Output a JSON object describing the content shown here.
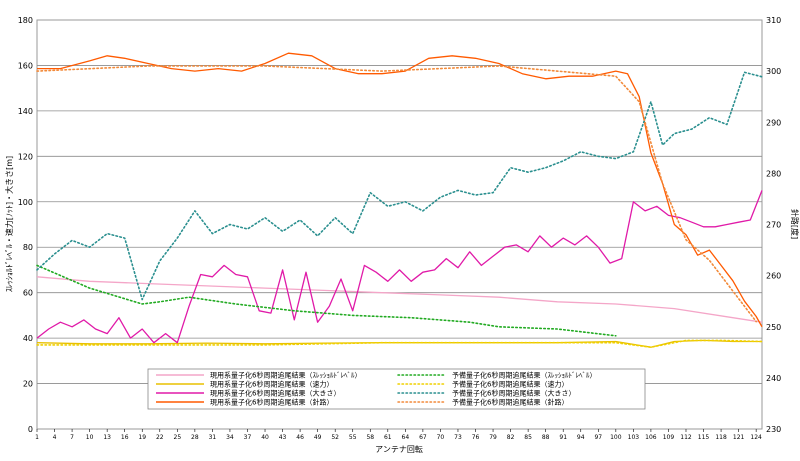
{
  "chart_data": {
    "type": "line",
    "xlabel": "アンテナ回転",
    "ylabel_left": "ｽﾚｯｼｮﾙﾄﾞﾚﾍﾞﾙ・速力[ﾉｯﾄ]・大きさ[m]",
    "ylabel_right": "針路[度]",
    "ylim_left": [
      0,
      180
    ],
    "ylim_right": [
      230,
      310
    ],
    "yticks_left": [
      "0",
      "20",
      "40",
      "60",
      "80",
      "100",
      "120",
      "140",
      "160",
      "180"
    ],
    "yticks_right": [
      "230",
      "240",
      "250",
      "260",
      "270",
      "280",
      "290",
      "300",
      "310"
    ],
    "x_ticks": [
      "1",
      "4",
      "7",
      "10",
      "13",
      "16",
      "19",
      "22",
      "25",
      "28",
      "31",
      "34",
      "37",
      "40",
      "43",
      "46",
      "49",
      "52",
      "55",
      "58",
      "61",
      "64",
      "67",
      "70",
      "73",
      "76",
      "79",
      "82",
      "85",
      "88",
      "91",
      "94",
      "97",
      "100",
      "103",
      "106",
      "109",
      "112",
      "115",
      "118",
      "121",
      "124"
    ],
    "grid": "horizontal",
    "legend_placement": "bottom",
    "series": [
      {
        "name": "現用系量子化6秒周期追尾結果（ｽﾚｯｼｮﾙﾄﾞﾚﾍﾞﾙ）",
        "axis": "left",
        "color": "#f4a6c8",
        "style": "solid",
        "x": [
          1,
          10,
          20,
          30,
          40,
          50,
          60,
          70,
          80,
          90,
          100,
          110,
          120,
          125
        ],
        "values": [
          67,
          65,
          64,
          63,
          62,
          61,
          60,
          59,
          58,
          56,
          55,
          53,
          49,
          47
        ]
      },
      {
        "name": "現用系量子化6秒周期追尾結果（速力）",
        "axis": "left",
        "color": "#e8c000",
        "style": "solid",
        "x": [
          1,
          10,
          20,
          30,
          40,
          50,
          60,
          70,
          80,
          90,
          100,
          106,
          110,
          115,
          120,
          125
        ],
        "values": [
          38,
          37.5,
          37.5,
          37.8,
          37.5,
          37.8,
          38,
          38,
          38,
          38,
          38.5,
          36,
          38.5,
          39,
          38.5,
          38.5
        ]
      },
      {
        "name": "現用系量子化6秒周期追尾結果（大きさ）",
        "axis": "left",
        "color": "#e01aa8",
        "style": "solid",
        "x": [
          1,
          3,
          5,
          7,
          9,
          11,
          13,
          15,
          17,
          19,
          21,
          23,
          25,
          27,
          29,
          31,
          33,
          35,
          37,
          39,
          41,
          43,
          45,
          47,
          49,
          51,
          53,
          55,
          57,
          59,
          61,
          63,
          65,
          67,
          69,
          71,
          73,
          75,
          77,
          79,
          81,
          83,
          85,
          87,
          89,
          91,
          93,
          95,
          97,
          99,
          101,
          103,
          105,
          107,
          109,
          111,
          113,
          115,
          117,
          119,
          121,
          123,
          125
        ],
        "values": [
          40,
          44,
          47,
          45,
          48,
          44,
          42,
          49,
          40,
          44,
          38,
          42,
          38,
          54,
          68,
          67,
          72,
          68,
          67,
          52,
          51,
          70,
          48,
          69,
          47,
          54,
          66,
          52,
          72,
          69,
          65,
          70,
          65,
          69,
          70,
          75,
          71,
          78,
          72,
          76,
          80,
          81,
          78,
          85,
          80,
          84,
          81,
          85,
          80,
          73,
          75,
          100,
          96,
          98,
          94,
          93,
          91,
          89,
          89,
          90,
          91,
          92,
          105
        ]
      },
      {
        "name": "現用系量子化6秒周期追尾結果（針路）",
        "axis": "right",
        "color": "#ff5a00",
        "style": "solid",
        "x": [
          1,
          5,
          10,
          13,
          16,
          20,
          24,
          28,
          32,
          36,
          40,
          44,
          48,
          52,
          56,
          60,
          64,
          68,
          72,
          76,
          80,
          84,
          88,
          92,
          96,
          100,
          102,
          104,
          106,
          108,
          110,
          112,
          114,
          116,
          118,
          120,
          122,
          124,
          125
        ],
        "values": [
          300.5,
          300.5,
          302,
          303,
          302.5,
          301.5,
          300.5,
          300,
          300.5,
          300,
          301.5,
          303.5,
          303,
          300.5,
          299.5,
          299.5,
          300,
          302.5,
          303,
          302.5,
          301.5,
          299.5,
          298.5,
          299,
          299,
          300,
          299.5,
          295,
          284,
          278,
          270,
          268,
          264,
          265,
          262,
          259,
          255,
          252,
          250
        ]
      },
      {
        "name": "予備量子化6秒周期追尾結果（ｽﾚｯｼｮﾙﾄﾞﾚﾍﾞﾙ）",
        "axis": "left",
        "color": "#22aa22",
        "style": "dotted",
        "x": [
          1,
          10,
          19,
          22,
          27,
          35,
          45,
          55,
          65,
          75,
          80,
          90,
          100
        ],
        "values": [
          72,
          62,
          55,
          56,
          58,
          55,
          52,
          50,
          49,
          47,
          45,
          44,
          41
        ]
      },
      {
        "name": "予備量子化6秒周期追尾結果（速力）",
        "axis": "left",
        "color": "#f0d000",
        "style": "dotted",
        "x": [
          1,
          20,
          40,
          60,
          80,
          100,
          106,
          112,
          118,
          125
        ],
        "values": [
          37,
          37,
          37,
          38,
          38,
          38,
          36,
          39,
          39,
          38.5
        ]
      },
      {
        "name": "予備量子化6秒周期追尾結果（大きさ）",
        "axis": "left",
        "color": "#2a8f8f",
        "style": "dotted",
        "x": [
          1,
          4,
          7,
          10,
          13,
          16,
          19,
          22,
          25,
          28,
          31,
          34,
          37,
          40,
          43,
          46,
          49,
          52,
          55,
          58,
          61,
          64,
          67,
          70,
          73,
          76,
          79,
          82,
          85,
          88,
          91,
          94,
          97,
          100,
          103,
          106,
          108,
          110,
          113,
          116,
          119,
          122,
          125
        ],
        "values": [
          70,
          77,
          83,
          80,
          86,
          84,
          57,
          74,
          84,
          96,
          86,
          90,
          88,
          93,
          87,
          92,
          85,
          93,
          86,
          104,
          98,
          100,
          96,
          102,
          105,
          103,
          104,
          115,
          113,
          115,
          118,
          122,
          120,
          119,
          122,
          144,
          125,
          130,
          132,
          137,
          134,
          157,
          155
        ]
      },
      {
        "name": "予備量子化6秒周期追尾結果（針路）",
        "axis": "right",
        "color": "#f28a3a",
        "style": "dotted",
        "x": [
          1,
          20,
          40,
          60,
          80,
          100,
          104,
          108,
          112,
          116,
          120,
          124
        ],
        "values": [
          300,
          301,
          301,
          300,
          301,
          299,
          294,
          278,
          267,
          263,
          257,
          251
        ]
      }
    ]
  }
}
